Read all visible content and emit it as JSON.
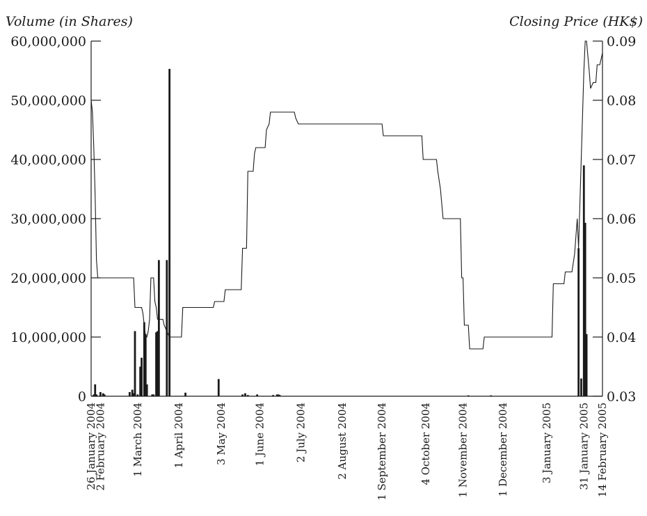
{
  "chart_data": {
    "type": "bar+line",
    "title": "",
    "left_axis": {
      "label": "Volume (in Shares)",
      "range": [
        0,
        60000000
      ],
      "ticks": [
        {
          "value": 0,
          "label": "0"
        },
        {
          "value": 10000000,
          "label": "10,000,000"
        },
        {
          "value": 20000000,
          "label": "20,000,000"
        },
        {
          "value": 30000000,
          "label": "30,000,000"
        },
        {
          "value": 40000000,
          "label": "40,000,000"
        },
        {
          "value": 50000000,
          "label": "50,000,000"
        },
        {
          "value": 60000000,
          "label": "60,000,000"
        }
      ]
    },
    "right_axis": {
      "label": "Closing Price (HK$)",
      "range": [
        0.03,
        0.09
      ],
      "ticks": [
        {
          "value": 0.03,
          "label": "0.03"
        },
        {
          "value": 0.04,
          "label": "0.04"
        },
        {
          "value": 0.05,
          "label": "0.05"
        },
        {
          "value": 0.06,
          "label": "0.06"
        },
        {
          "value": 0.07,
          "label": "0.07"
        },
        {
          "value": 0.08,
          "label": "0.08"
        },
        {
          "value": 0.09,
          "label": "0.09"
        }
      ]
    },
    "x_axis": {
      "range": [
        "2004-01-26",
        "2005-02-14"
      ],
      "ticks": [
        {
          "date": "2004-01-26",
          "label": "26 January 2004"
        },
        {
          "date": "2004-02-02",
          "label": "2 February 2004"
        },
        {
          "date": "2004-03-01",
          "label": "1 March 2004"
        },
        {
          "date": "2004-04-01",
          "label": "1 April 2004"
        },
        {
          "date": "2004-05-03",
          "label": "3 May 2004"
        },
        {
          "date": "2004-06-01",
          "label": "1 June 2004"
        },
        {
          "date": "2004-07-02",
          "label": "2 July 2004"
        },
        {
          "date": "2004-08-02",
          "label": "2 August 2004"
        },
        {
          "date": "2004-09-01",
          "label": "1 September 2004"
        },
        {
          "date": "2004-10-04",
          "label": "4 October 2004"
        },
        {
          "date": "2004-11-01",
          "label": "1 November 2004"
        },
        {
          "date": "2004-12-01",
          "label": "1 December 2004"
        },
        {
          "date": "2005-01-03",
          "label": "3 January 2005"
        },
        {
          "date": "2005-01-31",
          "label": "31 January 2005"
        },
        {
          "date": "2005-02-14",
          "label": "14 February 2005"
        }
      ]
    },
    "series": [
      {
        "type": "bar",
        "axis": "left",
        "points": [
          {
            "date": "2004-01-28",
            "value": 300000
          },
          {
            "date": "2004-01-29",
            "value": 2000000
          },
          {
            "date": "2004-01-30",
            "value": 300000
          },
          {
            "date": "2004-02-02",
            "value": 700000
          },
          {
            "date": "2004-02-04",
            "value": 500000
          },
          {
            "date": "2004-02-05",
            "value": 300000
          },
          {
            "date": "2004-02-24",
            "value": 700000
          },
          {
            "date": "2004-02-26",
            "value": 1100000
          },
          {
            "date": "2004-02-27",
            "value": 500000
          },
          {
            "date": "2004-02-28",
            "value": 11000000
          },
          {
            "date": "2004-03-01",
            "value": 300000
          },
          {
            "date": "2004-03-03",
            "value": 5000000
          },
          {
            "date": "2004-03-04",
            "value": 6500000
          },
          {
            "date": "2004-03-06",
            "value": 12500000
          },
          {
            "date": "2004-03-07",
            "value": 10500000
          },
          {
            "date": "2004-03-08",
            "value": 2000000
          },
          {
            "date": "2004-03-12",
            "value": 300000
          },
          {
            "date": "2004-03-13",
            "value": 300000
          },
          {
            "date": "2004-03-15",
            "value": 10800000
          },
          {
            "date": "2004-03-16",
            "value": 11000000
          },
          {
            "date": "2004-03-17",
            "value": 23000000
          },
          {
            "date": "2004-03-23",
            "value": 23000000
          },
          {
            "date": "2004-03-25",
            "value": 55300000
          },
          {
            "date": "2004-04-06",
            "value": 600000
          },
          {
            "date": "2004-05-01",
            "value": 2900000
          },
          {
            "date": "2004-05-19",
            "value": 300000
          },
          {
            "date": "2004-05-21",
            "value": 500000
          },
          {
            "date": "2004-05-23",
            "value": 200000
          },
          {
            "date": "2004-05-30",
            "value": 300000
          },
          {
            "date": "2004-06-11",
            "value": 200000
          },
          {
            "date": "2004-06-14",
            "value": 300000
          },
          {
            "date": "2004-06-15",
            "value": 300000
          },
          {
            "date": "2004-06-16",
            "value": 200000
          },
          {
            "date": "2004-11-05",
            "value": 150000
          },
          {
            "date": "2004-11-22",
            "value": 150000
          },
          {
            "date": "2005-01-27",
            "value": 25000000
          },
          {
            "date": "2005-01-29",
            "value": 3000000
          },
          {
            "date": "2005-01-31",
            "value": 39000000
          },
          {
            "date": "2005-02-01",
            "value": 29300000
          },
          {
            "date": "2005-02-02",
            "value": 10500000
          }
        ]
      },
      {
        "type": "line",
        "axis": "right",
        "points": [
          {
            "date": "2004-01-26",
            "value": 0.08
          },
          {
            "date": "2004-01-27",
            "value": 0.078
          },
          {
            "date": "2004-01-28",
            "value": 0.072
          },
          {
            "date": "2004-01-29",
            "value": 0.064
          },
          {
            "date": "2004-01-30",
            "value": 0.053
          },
          {
            "date": "2004-01-31",
            "value": 0.05
          },
          {
            "date": "2004-02-27",
            "value": 0.05
          },
          {
            "date": "2004-02-28",
            "value": 0.045
          },
          {
            "date": "2004-03-04",
            "value": 0.045
          },
          {
            "date": "2004-03-05",
            "value": 0.044
          },
          {
            "date": "2004-03-06",
            "value": 0.042
          },
          {
            "date": "2004-03-07",
            "value": 0.04
          },
          {
            "date": "2004-03-08",
            "value": 0.04
          },
          {
            "date": "2004-03-09",
            "value": 0.041
          },
          {
            "date": "2004-03-10",
            "value": 0.043
          },
          {
            "date": "2004-03-11",
            "value": 0.05
          },
          {
            "date": "2004-03-13",
            "value": 0.05
          },
          {
            "date": "2004-03-14",
            "value": 0.046
          },
          {
            "date": "2004-03-15",
            "value": 0.045
          },
          {
            "date": "2004-03-16",
            "value": 0.043
          },
          {
            "date": "2004-03-20",
            "value": 0.043
          },
          {
            "date": "2004-03-21",
            "value": 0.042
          },
          {
            "date": "2004-03-23",
            "value": 0.041
          },
          {
            "date": "2004-03-25",
            "value": 0.04
          },
          {
            "date": "2004-04-03",
            "value": 0.04
          },
          {
            "date": "2004-04-04",
            "value": 0.045
          },
          {
            "date": "2004-04-27",
            "value": 0.045
          },
          {
            "date": "2004-04-28",
            "value": 0.046
          },
          {
            "date": "2004-05-05",
            "value": 0.046
          },
          {
            "date": "2004-05-06",
            "value": 0.048
          },
          {
            "date": "2004-05-18",
            "value": 0.048
          },
          {
            "date": "2004-05-19",
            "value": 0.055
          },
          {
            "date": "2004-05-22",
            "value": 0.055
          },
          {
            "date": "2004-05-23",
            "value": 0.068
          },
          {
            "date": "2004-05-27",
            "value": 0.068
          },
          {
            "date": "2004-05-28",
            "value": 0.071
          },
          {
            "date": "2004-05-29",
            "value": 0.072
          },
          {
            "date": "2004-06-05",
            "value": 0.072
          },
          {
            "date": "2004-06-06",
            "value": 0.075
          },
          {
            "date": "2004-06-08",
            "value": 0.076
          },
          {
            "date": "2004-06-09",
            "value": 0.078
          },
          {
            "date": "2004-06-27",
            "value": 0.078
          },
          {
            "date": "2004-06-28",
            "value": 0.077
          },
          {
            "date": "2004-06-30",
            "value": 0.076
          },
          {
            "date": "2004-09-01",
            "value": 0.076
          },
          {
            "date": "2004-09-02",
            "value": 0.074
          },
          {
            "date": "2004-10-01",
            "value": 0.074
          },
          {
            "date": "2004-10-02",
            "value": 0.07
          },
          {
            "date": "2004-10-12",
            "value": 0.07
          },
          {
            "date": "2004-10-13",
            "value": 0.068
          },
          {
            "date": "2004-10-15",
            "value": 0.065
          },
          {
            "date": "2004-10-17",
            "value": 0.06
          },
          {
            "date": "2004-10-30",
            "value": 0.06
          },
          {
            "date": "2004-10-31",
            "value": 0.05
          },
          {
            "date": "2004-11-01",
            "value": 0.05
          },
          {
            "date": "2004-11-02",
            "value": 0.042
          },
          {
            "date": "2004-11-05",
            "value": 0.042
          },
          {
            "date": "2004-11-06",
            "value": 0.038
          },
          {
            "date": "2004-11-16",
            "value": 0.038
          },
          {
            "date": "2004-11-17",
            "value": 0.04
          },
          {
            "date": "2005-01-07",
            "value": 0.04
          },
          {
            "date": "2005-01-08",
            "value": 0.049
          },
          {
            "date": "2005-01-16",
            "value": 0.049
          },
          {
            "date": "2005-01-17",
            "value": 0.051
          },
          {
            "date": "2005-01-22",
            "value": 0.051
          },
          {
            "date": "2005-01-24",
            "value": 0.054
          },
          {
            "date": "2005-01-26",
            "value": 0.06
          },
          {
            "date": "2005-01-27",
            "value": 0.055
          },
          {
            "date": "2005-01-31",
            "value": 0.085
          },
          {
            "date": "2005-02-01",
            "value": 0.09
          },
          {
            "date": "2005-02-02",
            "value": 0.09
          },
          {
            "date": "2005-02-04",
            "value": 0.085
          },
          {
            "date": "2005-02-05",
            "value": 0.082
          },
          {
            "date": "2005-02-07",
            "value": 0.083
          },
          {
            "date": "2005-02-09",
            "value": 0.083
          },
          {
            "date": "2005-02-10",
            "value": 0.086
          },
          {
            "date": "2005-02-12",
            "value": 0.086
          },
          {
            "date": "2005-02-14",
            "value": 0.088
          }
        ]
      }
    ]
  }
}
